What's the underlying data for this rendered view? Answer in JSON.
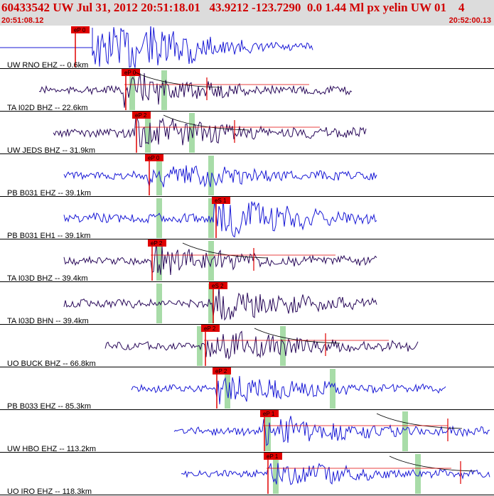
{
  "header": {
    "title": "60433542 UW Jul 31, 2012 20:51:18.01   43.9212 -123.7290  0.0 1.44 Ml px yelin UW 01    4",
    "start_time": "20:51:08.12",
    "end_time": "20:52:00.13"
  },
  "colors": {
    "header_bg": "#dcdcdc",
    "header_text": "#d00000",
    "trace_blue": "#1a1ad6",
    "trace_purple": "#2a0a5a",
    "pick_red": "#e00000",
    "window_green": "#a8dca8"
  },
  "traces": [
    {
      "label": "UW RNO EHZ -- 0.6km",
      "pick": "eP 0",
      "color": "blue"
    },
    {
      "label": "TA I02D BHZ -- 22.6km",
      "pick": "eP 0",
      "color": "purple"
    },
    {
      "label": "UW JEDS BHZ -- 31.9km",
      "pick": "eP 2",
      "color": "purple"
    },
    {
      "label": "PB B031 EHZ -- 39.1km",
      "pick": "eP 0",
      "color": "blue"
    },
    {
      "label": "PB B031 EH1 -- 39.1km",
      "pick": "eS 1",
      "color": "blue"
    },
    {
      "label": "TA I03D BHZ -- 39.4km",
      "pick": "eP 2",
      "color": "purple"
    },
    {
      "label": "TA I03D BHN -- 39.4km",
      "pick": "eS 2",
      "color": "purple"
    },
    {
      "label": "UO BUCK BHZ -- 66.8km",
      "pick": "eP 2",
      "color": "purple"
    },
    {
      "label": "PB B033 EHZ -- 85.3km",
      "pick": "eP 2",
      "color": "blue"
    },
    {
      "label": "UW HBO EHZ -- 113.2km",
      "pick": "eP 1",
      "color": "blue"
    },
    {
      "label": "UO IRO EHZ -- 118.3km",
      "pick": "eP 1",
      "color": "blue"
    }
  ]
}
